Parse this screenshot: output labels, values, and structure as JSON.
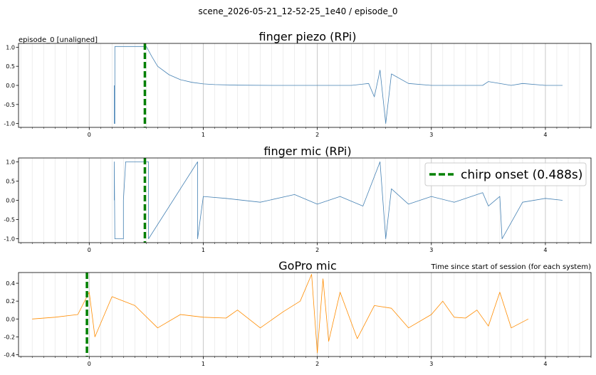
{
  "figure": {
    "suptitle": "scene_2026-05-21_12-52-25_1e40  /  episode_0"
  },
  "chart_data": [
    {
      "type": "line",
      "title": "finger piezo (RPi)",
      "corner_note": "episode_0  [unaligned]",
      "xlim": [
        -0.62,
        4.4
      ],
      "ylim": [
        -1.1,
        1.1
      ],
      "xticks": [
        "0",
        "1",
        "2",
        "3",
        "4"
      ],
      "yticks": [
        "1.0",
        "0.5",
        "0.0",
        "-0.5",
        "-1.0"
      ],
      "grid": true,
      "marker_line": {
        "x": 0.488,
        "color": "#008000",
        "style": "dashed"
      },
      "series": [
        {
          "color": "#4682b4",
          "x": [
            0.22,
            0.22,
            0.225,
            0.225,
            0.3,
            0.4,
            0.48,
            0.5,
            0.55,
            0.6,
            0.7,
            0.8,
            0.9,
            1.0,
            1.1,
            1.3,
            1.6,
            2.0,
            2.3,
            2.45,
            2.5,
            2.55,
            2.6,
            2.65,
            2.8,
            3.0,
            3.2,
            3.45,
            3.5,
            3.7,
            3.8,
            4.0,
            4.15
          ],
          "y": [
            0.0,
            -1.0,
            -1.0,
            1.02,
            1.02,
            1.02,
            1.02,
            1.02,
            0.75,
            0.5,
            0.28,
            0.15,
            0.08,
            0.04,
            0.02,
            0.005,
            0.0,
            0.0,
            0.0,
            0.05,
            -0.3,
            0.4,
            -1.0,
            0.3,
            0.05,
            0.0,
            0.0,
            0.0,
            0.1,
            0.0,
            0.05,
            0.0,
            0.0
          ]
        }
      ]
    },
    {
      "type": "line",
      "title": "finger mic (RPi)",
      "xlim": [
        -0.62,
        4.4
      ],
      "ylim": [
        -1.1,
        1.1
      ],
      "xticks": [
        "0",
        "1",
        "2",
        "3",
        "4"
      ],
      "yticks": [
        "1.0",
        "0.5",
        "0.0",
        "-0.5",
        "-1.0"
      ],
      "grid": true,
      "marker_line": {
        "x": 0.488,
        "color": "#008000",
        "style": "dashed"
      },
      "legend": {
        "label": "chirp onset (0.488s)",
        "placement": "upper right"
      },
      "series": [
        {
          "color": "#4682b4",
          "x": [
            0.22,
            0.22,
            0.225,
            0.225,
            0.3,
            0.3,
            0.32,
            0.32,
            0.48,
            0.52,
            0.52,
            0.95,
            0.95,
            1.0,
            1.2,
            1.5,
            1.8,
            2.0,
            2.2,
            2.4,
            2.55,
            2.6,
            2.65,
            2.8,
            3.0,
            3.2,
            3.45,
            3.5,
            3.6,
            3.62,
            3.8,
            4.0,
            4.15
          ],
          "y": [
            0.0,
            1.0,
            -1.0,
            -1.0,
            -1.0,
            0.0,
            1.0,
            1.0,
            1.0,
            1.0,
            -1.0,
            1.0,
            -1.0,
            0.1,
            0.05,
            -0.05,
            0.15,
            -0.1,
            0.1,
            -0.15,
            1.0,
            -1.0,
            0.3,
            -0.1,
            0.1,
            -0.05,
            0.2,
            -0.15,
            0.1,
            -1.0,
            -0.05,
            0.05,
            0.0
          ]
        }
      ]
    },
    {
      "type": "line",
      "title": "GoPro mic",
      "corner_note": "Time since start of session (for each system)",
      "xlim": [
        -0.62,
        4.4
      ],
      "ylim": [
        -0.42,
        0.52
      ],
      "xticks": [
        "0",
        "1",
        "2",
        "3",
        "4"
      ],
      "yticks": [
        "0.4",
        "0.2",
        "0.0",
        "-0.2",
        "-0.4"
      ],
      "grid": true,
      "marker_line": {
        "x": -0.02,
        "color": "#008000",
        "style": "dashed"
      },
      "series": [
        {
          "color": "#ff8c00",
          "x": [
            -0.5,
            -0.3,
            -0.1,
            0.0,
            0.05,
            0.2,
            0.4,
            0.6,
            0.8,
            1.0,
            1.2,
            1.3,
            1.5,
            1.7,
            1.85,
            1.95,
            2.0,
            2.05,
            2.1,
            2.2,
            2.35,
            2.5,
            2.65,
            2.8,
            3.0,
            3.1,
            3.2,
            3.3,
            3.4,
            3.5,
            3.6,
            3.7,
            3.85
          ],
          "y": [
            0.0,
            0.02,
            0.05,
            0.3,
            -0.2,
            0.25,
            0.15,
            -0.1,
            0.05,
            0.02,
            0.01,
            0.1,
            -0.1,
            0.08,
            0.2,
            0.5,
            -0.38,
            0.45,
            -0.25,
            0.3,
            -0.22,
            0.15,
            0.12,
            -0.1,
            0.05,
            0.2,
            0.02,
            0.01,
            0.1,
            -0.08,
            0.3,
            -0.1,
            0.0
          ]
        }
      ]
    }
  ]
}
